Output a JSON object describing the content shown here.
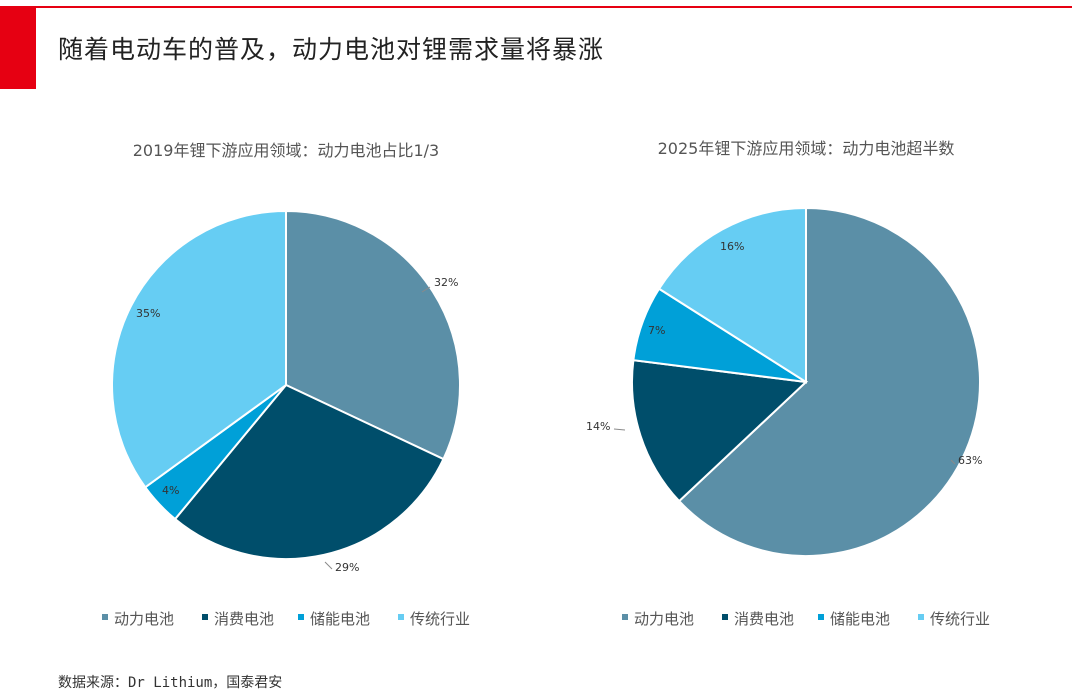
{
  "page": {
    "title": "随着电动车的普及，动力电池对锂需求量将暴涨",
    "source": "数据来源：Dr Lithium，国泰君安",
    "colors": {
      "brand_red": "#e60012",
      "highlight_text": "#e60012"
    }
  },
  "chart_data": [
    {
      "type": "pie",
      "title": "2019年锂下游应用领域：动力电池占比1/3",
      "categories": [
        "动力电池",
        "消费电池",
        "储能电池",
        "传统行业"
      ],
      "values": [
        32,
        29,
        4,
        35
      ],
      "data_labels": [
        "32%",
        "29%",
        "4%",
        "35%"
      ],
      "highlight_labels": [
        "32%"
      ],
      "colors": [
        "#5b8fa7",
        "#004e6b",
        "#00a0d8",
        "#66cdf3"
      ],
      "legend": {
        "placement": "bottom",
        "labels": [
          "动力电池",
          "消费电池",
          "储能电池",
          "传统行业"
        ]
      }
    },
    {
      "type": "pie",
      "title": "2025年锂下游应用领域：动力电池超半数",
      "categories": [
        "动力电池",
        "消费电池",
        "储能电池",
        "传统行业"
      ],
      "values": [
        63,
        14,
        7,
        16
      ],
      "data_labels": [
        "63%",
        "14%",
        "7%",
        "16%"
      ],
      "highlight_labels": [
        "63%"
      ],
      "colors": [
        "#5b8fa7",
        "#004e6b",
        "#00a0d8",
        "#66cdf3"
      ],
      "legend": {
        "placement": "bottom",
        "labels": [
          "动力电池",
          "消费电池",
          "储能电池",
          "传统行业"
        ]
      }
    }
  ]
}
